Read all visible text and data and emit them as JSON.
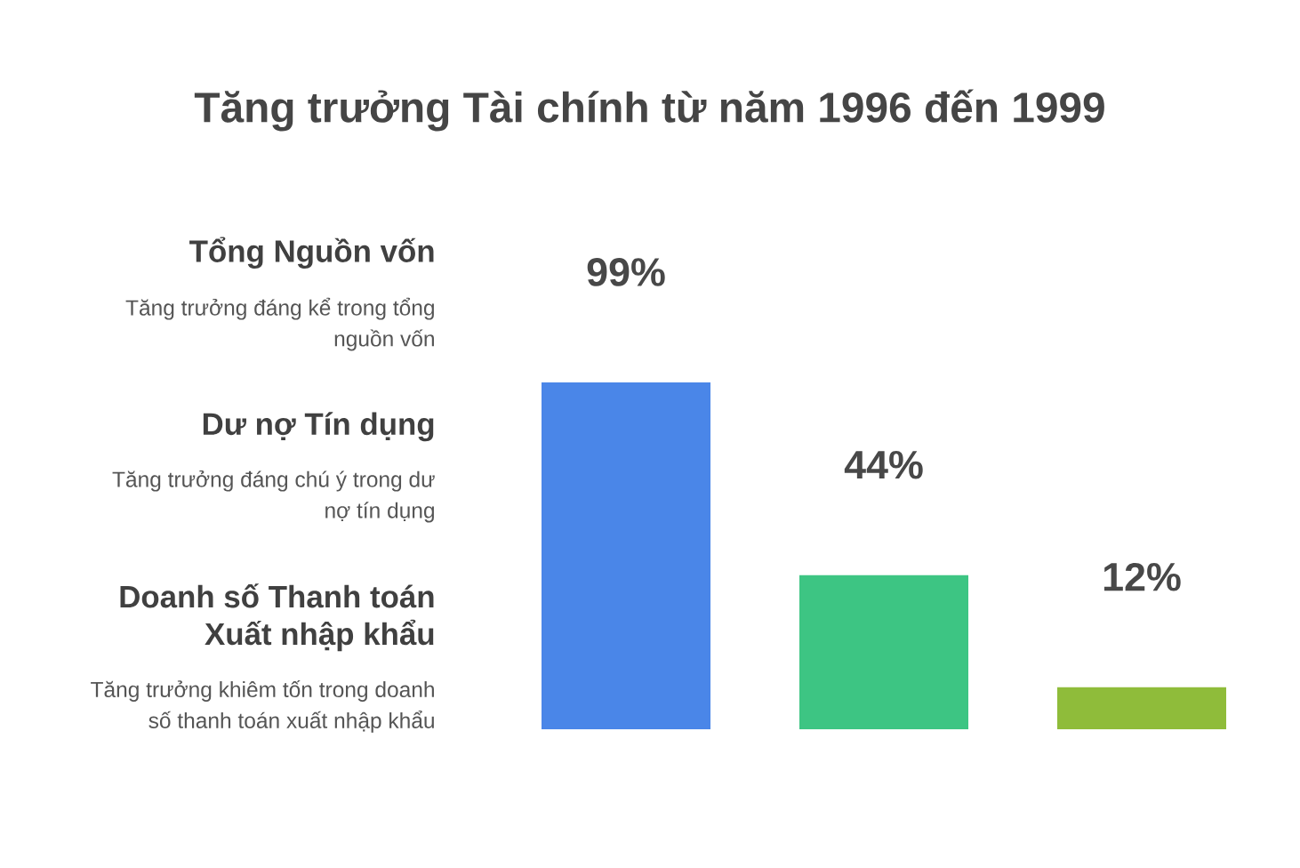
{
  "chart_data": {
    "type": "bar",
    "title": "Tăng trưởng Tài chính từ năm 1996 đến 1999",
    "categories": [
      null,
      null,
      null
    ],
    "values": [
      99,
      44,
      12
    ],
    "colors": [
      "#4a86e8",
      "#3dc583",
      "#8fbc3a"
    ],
    "value_labels": [
      "99%",
      "44%",
      "12%"
    ],
    "annotations": [
      "Tổng Nguồn vốn",
      "Tăng trưởng đáng kể trong tổng nguồn vốn",
      "Dư nợ Tín dụng",
      "Tăng trưởng đáng chú ý trong dư nợ tín dụng",
      "Doanh số Thanh toán Xuất nhập khẩu",
      "Tăng trưởng khiêm tốn trong doanh số thanh toán xuất nhập khẩu"
    ],
    "tick_labels": false
  }
}
